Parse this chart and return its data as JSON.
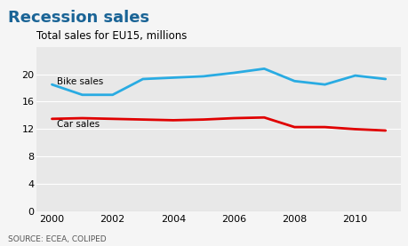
{
  "title": "Recession sales",
  "subtitle": "Total sales for EU15, millions",
  "source": "SOURCE: ECEA, COLIPED",
  "title_color": "#1a6496",
  "background_color": "#e8e8e8",
  "outer_background": "#f5f5f5",
  "years": [
    2000,
    2001,
    2002,
    2003,
    2004,
    2005,
    2006,
    2007,
    2008,
    2009,
    2010,
    2011
  ],
  "bike_sales": [
    18.5,
    17.0,
    17.0,
    19.3,
    19.5,
    19.7,
    20.2,
    20.8,
    19.0,
    18.5,
    19.8,
    19.3
  ],
  "car_sales": [
    13.5,
    13.6,
    13.5,
    13.4,
    13.3,
    13.4,
    13.6,
    13.7,
    12.3,
    12.3,
    12.0,
    11.8
  ],
  "bike_color": "#29abe2",
  "car_color": "#e00000",
  "bike_label": "Bike sales",
  "car_label": "Car sales",
  "ylim": [
    0,
    24
  ],
  "yticks": [
    0,
    4,
    8,
    12,
    16,
    20
  ],
  "xlim": [
    1999.5,
    2011.5
  ],
  "xticks": [
    2000,
    2002,
    2004,
    2006,
    2008,
    2010
  ],
  "line_width": 2.0
}
